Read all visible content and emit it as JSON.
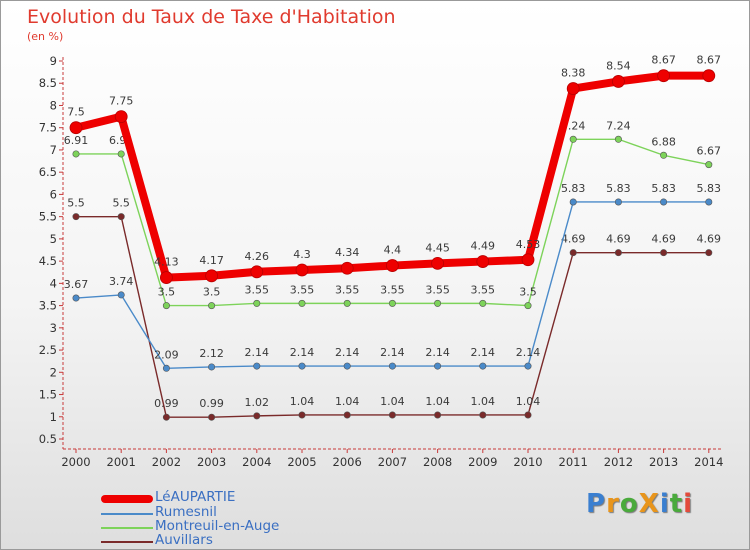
{
  "title": "Evolution du Taux de Taxe d'Habitation",
  "subtitle": "(en %)",
  "logo": {
    "text": "ProXiti",
    "letters": [
      "P",
      "r",
      "o",
      "X",
      "i",
      "t",
      "i"
    ],
    "colors": [
      "#3a7fd0",
      "#e8951c",
      "#4aaa3c",
      "#e8951c",
      "#3a7fd0",
      "#4aaa3c",
      "#e34b3c"
    ]
  },
  "chart_data": {
    "type": "line",
    "x": [
      "2000",
      "2001",
      "2002",
      "2003",
      "2004",
      "2005",
      "2006",
      "2007",
      "2008",
      "2009",
      "2010",
      "2011",
      "2012",
      "2013",
      "2014"
    ],
    "ylim": [
      0.5,
      9
    ],
    "yticks": [
      "0.5",
      "1",
      "1.5",
      "2",
      "2.5",
      "3",
      "3.5",
      "4",
      "4.5",
      "5",
      "5.5",
      "6",
      "6.5",
      "7",
      "7.5",
      "8",
      "8.5",
      "9"
    ],
    "grid": false,
    "legend_position": "bottom-left",
    "series": [
      {
        "name": "Auvillars",
        "color": "#7a2a2a",
        "values": [
          5.5,
          5.5,
          0.99,
          0.99,
          1.02,
          1.04,
          1.04,
          1.04,
          1.04,
          1.04,
          1.04,
          4.69,
          4.69,
          4.69,
          4.69
        ],
        "labels": [
          "5.5",
          "5.5",
          "0.99",
          "0.99",
          "1.02",
          "1.04",
          "1.04",
          "1.04",
          "1.04",
          "1.04",
          "1.04",
          "4.69",
          "4.69",
          "4.69",
          "4.69"
        ]
      },
      {
        "name": "Montreuil-en-Auge",
        "color": "#7dd35a",
        "values": [
          6.91,
          6.91,
          3.5,
          3.5,
          3.55,
          3.55,
          3.55,
          3.55,
          3.55,
          3.55,
          3.5,
          7.24,
          7.24,
          6.88,
          6.67
        ],
        "labels": [
          "6.91",
          "6.91",
          "3.5",
          "3.5",
          "3.55",
          "3.55",
          "3.55",
          "3.55",
          "3.55",
          "3.55",
          "3.5",
          "7.24",
          "7.24",
          "6.88",
          "6.67"
        ]
      },
      {
        "name": "Rumesnil",
        "color": "#4a8ac9",
        "values": [
          3.67,
          3.74,
          2.09,
          2.12,
          2.14,
          2.14,
          2.14,
          2.14,
          2.14,
          2.14,
          2.14,
          5.83,
          5.83,
          5.83,
          5.83
        ],
        "labels": [
          "3.67",
          "3.74",
          "2.09",
          "2.12",
          "2.14",
          "2.14",
          "2.14",
          "2.14",
          "2.14",
          "2.14",
          "2.14",
          "5.83",
          "5.83",
          "5.83",
          "5.83"
        ]
      },
      {
        "name": "LéAUPARTIE",
        "color": "#ee0000",
        "values": [
          7.5,
          7.75,
          4.13,
          4.17,
          4.26,
          4.3,
          4.34,
          4.4,
          4.45,
          4.49,
          4.53,
          8.38,
          8.54,
          8.67,
          8.67
        ],
        "labels": [
          "7.5",
          "7.75",
          "4.13",
          "4.17",
          "4.26",
          "4.3",
          "4.34",
          "4.4",
          "4.45",
          "4.49",
          "4.53",
          "8.38",
          "8.54",
          "8.67",
          "8.67"
        ]
      }
    ]
  },
  "legend": [
    {
      "name": "LéAUPARTIE",
      "color": "#ee0000"
    },
    {
      "name": "Rumesnil",
      "color": "#4a8ac9"
    },
    {
      "name": "Montreuil-en-Auge",
      "color": "#7dd35a"
    },
    {
      "name": "Auvillars",
      "color": "#7a2a2a"
    }
  ]
}
